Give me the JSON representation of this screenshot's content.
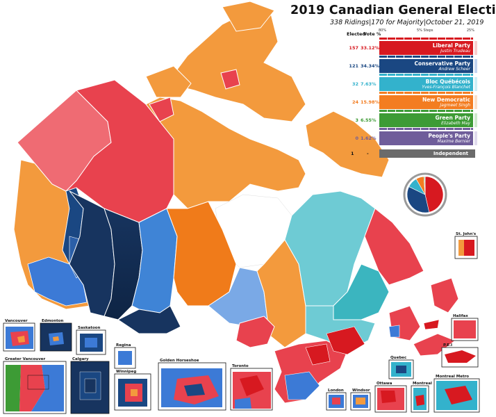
{
  "title": "2019 Canadian General Electi",
  "subtitle": "338 Ridings|170 for Majority|October 21, 2019",
  "scale": {
    "left": "80%",
    "mid": "5% Steps",
    "right": "25%"
  },
  "table_header": {
    "elected": "Elected",
    "vote": "Vote %"
  },
  "parties": [
    {
      "seats": "157",
      "vote": "33.12%",
      "name": "Liberal Party",
      "leader": "Justin Trudeau",
      "color": "#d71920",
      "side": "#f4a6a6"
    },
    {
      "seats": "121",
      "vote": "34.34%",
      "name": "Conservative Party",
      "leader": "Andrew Scheer",
      "color": "#1a4782",
      "side": "#8fb3e6"
    },
    {
      "seats": "32",
      "vote": "7.63%",
      "name": "Bloc Québécois",
      "leader": "Yves-François Blanchet",
      "color": "#33b2cc",
      "side": "#a6e2ee"
    },
    {
      "seats": "24",
      "vote": "15.98%",
      "name": "New Democratic",
      "leader": "Jagmeet Singh",
      "color": "#f37d21",
      "side": "#f9c79b"
    },
    {
      "seats": "3",
      "vote": "6.55%",
      "name": "Green Party",
      "leader": "Elizabeth May",
      "color": "#3d9b35",
      "side": "#a9d8a5"
    },
    {
      "seats": "0",
      "vote": "1.62%",
      "name": "People's Party",
      "leader": "Maxime Bernier",
      "color": "#6f5d9a",
      "side": "#c7bde0"
    }
  ],
  "independent": {
    "seats": "1",
    "vote": "-",
    "name": "Independent",
    "color": "#6b6b6b"
  },
  "pie_seat_share": [
    {
      "party": "Liberal",
      "value": 157,
      "color": "#d71920"
    },
    {
      "party": "Conservative",
      "value": 121,
      "color": "#1a4782"
    },
    {
      "party": "Bloc",
      "value": 32,
      "color": "#33b2cc"
    },
    {
      "party": "NDP",
      "value": 24,
      "color": "#f37d21"
    },
    {
      "party": "Green",
      "value": 3,
      "color": "#3d9b35"
    },
    {
      "party": "Independent",
      "value": 1,
      "color": "#6b6b6b"
    }
  ],
  "insets": {
    "vancouver": "Vancouver",
    "edmonton": "Edmonton",
    "saskatoon": "Saskatoon",
    "regina": "Regina",
    "greater_vancouver": "Greater Vancouver",
    "calgary": "Calgary",
    "winnipeg": "Winnipeg",
    "golden_horseshoe": "Golden Horseshoe",
    "toronto": "Toronto",
    "london": "London",
    "windsor": "Windsor",
    "ottawa": "Ottawa",
    "montreal": "Montreal",
    "montreal_metro": "Montreal Metro",
    "quebec": "Quebec",
    "halifax": "Halifax",
    "pei": "P.E.I",
    "st_johns": "St. John's"
  }
}
